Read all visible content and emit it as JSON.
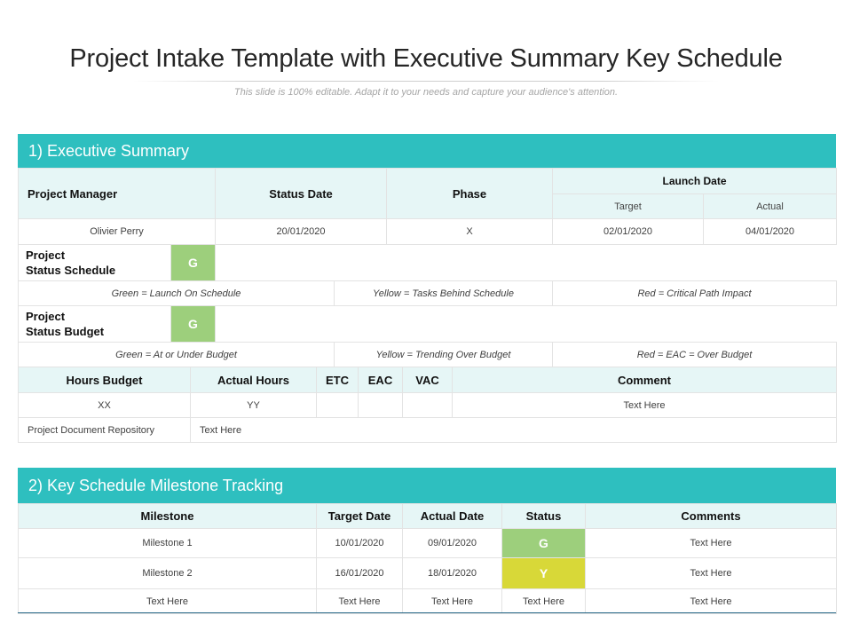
{
  "page": {
    "title": "Project Intake Template with Executive Summary Key Schedule",
    "subtitle": "This slide is 100% editable. Adapt it to your needs and capture your audience's attention."
  },
  "colors": {
    "accent": "#2ebfbf",
    "header_fill": "#e6f6f6",
    "green": "#9dcf7c",
    "yellow": "#d8d838"
  },
  "executive_summary": {
    "heading": "1) Executive Summary",
    "columns": {
      "project_manager": "Project Manager",
      "status_date": "Status Date",
      "phase": "Phase",
      "launch_date": "Launch Date",
      "target": "Target",
      "actual": "Actual"
    },
    "row": {
      "project_manager": "Olivier Perry",
      "status_date": "20/01/2020",
      "phase": "X",
      "target": "02/01/2020",
      "actual": "04/01/2020"
    },
    "schedule": {
      "label": "Project\nStatus Schedule",
      "status": "G",
      "key_green": "Green = Launch On Schedule",
      "key_yellow": "Yellow = Tasks Behind Schedule",
      "key_red": "Red = Critical Path Impact"
    },
    "budget": {
      "label": "Project\nStatus Budget",
      "status": "G",
      "key_green": "Green = At or Under Budget",
      "key_yellow": "Yellow = Trending Over Budget",
      "key_red": "Red = EAC = Over Budget"
    },
    "hours": {
      "headers": [
        "Hours Budget",
        "Actual Hours",
        "ETC",
        "EAC",
        "VAC",
        "Comment"
      ],
      "values": [
        "XX",
        "YY",
        "",
        "",
        "",
        "Text Here"
      ]
    },
    "repository": {
      "label": "Project Document Repository",
      "value": "Text Here"
    }
  },
  "milestones": {
    "heading": "2) Key Schedule Milestone Tracking",
    "headers": [
      "Milestone",
      "Target Date",
      "Actual Date",
      "Status",
      "Comments"
    ],
    "rows": [
      {
        "milestone": "Milestone 1",
        "target": "10/01/2020",
        "actual": "09/01/2020",
        "status": "G",
        "comments": "Text Here"
      },
      {
        "milestone": "Milestone 2",
        "target": "16/01/2020",
        "actual": "18/01/2020",
        "status": "Y",
        "comments": "Text Here"
      },
      {
        "milestone": "Text Here",
        "target": "Text Here",
        "actual": "Text Here",
        "status": "Text Here",
        "comments": "Text Here"
      }
    ]
  }
}
